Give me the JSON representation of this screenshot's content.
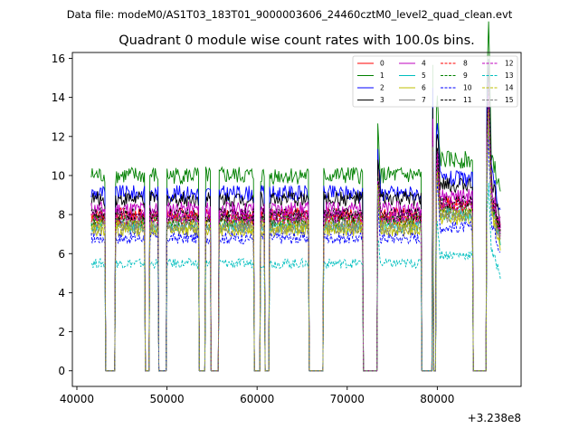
{
  "chart_data": {
    "type": "line",
    "suptitle": "Data file: modeM0/AS1T03_183T01_9000003606_24460cztM0_level2_quad_clean.evt",
    "title": "Quadrant 0 module wise count rates with 100.0s bins.",
    "xlabel": "",
    "ylabel": "",
    "x_offset_label": "+3.238e8",
    "xlim": [
      39500,
      89300
    ],
    "ylim": [
      -0.8,
      16.3
    ],
    "xticks": [
      40000,
      50000,
      60000,
      70000,
      80000
    ],
    "xtick_labels": [
      "40000",
      "50000",
      "60000",
      "70000",
      "80000"
    ],
    "yticks": [
      0,
      2,
      4,
      6,
      8,
      10,
      12,
      14,
      16
    ],
    "ytick_labels": [
      "0",
      "2",
      "4",
      "6",
      "8",
      "10",
      "12",
      "14",
      "16"
    ],
    "legend_position": "top-right",
    "legend_columns": 4,
    "x_start": 41600,
    "x_end": 87000,
    "bin_size": 100,
    "gaps": [
      [
        43200,
        44200
      ],
      [
        47600,
        48000
      ],
      [
        49100,
        49900
      ],
      [
        53600,
        54200
      ],
      [
        54900,
        55700
      ],
      [
        59700,
        60300
      ],
      [
        60900,
        61300
      ],
      [
        65800,
        67300
      ],
      [
        71800,
        73300
      ],
      [
        78300,
        79400
      ],
      [
        79600,
        79800
      ],
      [
        84000,
        85400
      ]
    ],
    "peaks": [
      [
        47800,
        1.45
      ],
      [
        73400,
        1.25
      ],
      [
        79500,
        1.55
      ],
      [
        80000,
        1.3
      ],
      [
        85700,
        1.5
      ]
    ],
    "series": [
      {
        "name": "0",
        "color": "#ff0000",
        "dash": "solid",
        "base": 8.0
      },
      {
        "name": "1",
        "color": "#008000",
        "dash": "solid",
        "base": 10.0
      },
      {
        "name": "2",
        "color": "#0000ff",
        "dash": "solid",
        "base": 9.1
      },
      {
        "name": "3",
        "color": "#000000",
        "dash": "solid",
        "base": 8.8
      },
      {
        "name": "4",
        "color": "#bf00bf",
        "dash": "solid",
        "base": 8.3
      },
      {
        "name": "5",
        "color": "#00bfbf",
        "dash": "solid",
        "base": 7.4
      },
      {
        "name": "6",
        "color": "#bfbf00",
        "dash": "solid",
        "base": 7.2
      },
      {
        "name": "7",
        "color": "#808080",
        "dash": "solid",
        "base": 7.6
      },
      {
        "name": "8",
        "color": "#ff0000",
        "dash": "dashed",
        "base": 7.8
      },
      {
        "name": "9",
        "color": "#008000",
        "dash": "dashed",
        "base": 7.7
      },
      {
        "name": "10",
        "color": "#0000ff",
        "dash": "dashed",
        "base": 6.8
      },
      {
        "name": "11",
        "color": "#000000",
        "dash": "dashed",
        "base": 8.0
      },
      {
        "name": "12",
        "color": "#bf00bf",
        "dash": "dashed",
        "base": 7.9
      },
      {
        "name": "13",
        "color": "#00bfbf",
        "dash": "dashed",
        "base": 5.5
      },
      {
        "name": "14",
        "color": "#bfbf00",
        "dash": "dashed",
        "base": 7.4
      },
      {
        "name": "15",
        "color": "#808080",
        "dash": "dashed",
        "base": 7.3
      }
    ]
  }
}
